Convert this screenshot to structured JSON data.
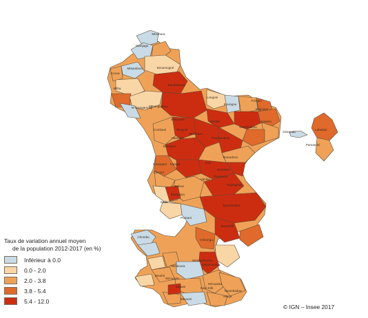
{
  "legend": {
    "title_line1": "Taux de variation annuel moyen",
    "title_line2": "de la population 2012-2017 (en %)",
    "classes": [
      {
        "label": "Inférieur à  0.0",
        "color": "#c8dbe6"
      },
      {
        "label": "0.0 - 2.0",
        "color": "#f9d6a6"
      },
      {
        "label": "2.0 - 3.8",
        "color": "#efa257"
      },
      {
        "label": "3.8 - 5.4",
        "color": "#e06a2b"
      },
      {
        "label": "5.4 - 12.0",
        "color": "#cc2d10"
      }
    ]
  },
  "credit": "© IGN – Insee 2017",
  "villages": [
    {
      "name": "Mtsamboro",
      "cls": 0
    },
    {
      "name": "Hamjago",
      "cls": 0
    },
    {
      "name": "Mtsahara",
      "cls": 1
    },
    {
      "name": "Mliha",
      "cls": 2
    },
    {
      "name": "Mtsangadoua",
      "cls": 1
    },
    {
      "name": "Acoua",
      "cls": 1
    },
    {
      "name": "Dzoumogné",
      "cls": 2
    },
    {
      "name": "Bouyouni",
      "cls": 4
    },
    {
      "name": "Bandraboua",
      "cls": 4
    },
    {
      "name": "Longoni",
      "cls": 1
    },
    {
      "name": "Koungou",
      "cls": 0
    },
    {
      "name": "Trévani",
      "cls": 3
    },
    {
      "name": "Majicavo",
      "cls": 3
    },
    {
      "name": "Kawéni",
      "cls": 4
    },
    {
      "name": "Mamoudzou",
      "cls": 4
    },
    {
      "name": "Mtsahara",
      "cls": 4
    },
    {
      "name": "Tsingoni",
      "cls": 4
    },
    {
      "name": "Combani",
      "cls": 4
    },
    {
      "name": "Mroalé",
      "cls": 4
    },
    {
      "name": "Hamouro",
      "cls": 2
    },
    {
      "name": "Barakani",
      "cls": 4
    },
    {
      "name": "Ouangani",
      "cls": 4
    },
    {
      "name": "Kahani",
      "cls": 4
    },
    {
      "name": "Dembéni",
      "cls": 4
    },
    {
      "name": "Iloni",
      "cls": 3
    },
    {
      "name": "Tsoundzou",
      "cls": 4
    },
    {
      "name": "Passamainty",
      "cls": 4
    },
    {
      "name": "Vahibé",
      "cls": 4
    },
    {
      "name": "Tsararano",
      "cls": 4
    },
    {
      "name": "Hajangoua",
      "cls": 4
    },
    {
      "name": "Nyambadao",
      "cls": 4
    },
    {
      "name": "Bandrélé",
      "cls": 3
    },
    {
      "name": "Mtsamoudou",
      "cls": 3
    },
    {
      "name": "Sada",
      "cls": 1
    },
    {
      "name": "Mangajou",
      "cls": 2
    },
    {
      "name": "Chiconi",
      "cls": 2
    },
    {
      "name": "Sohoa",
      "cls": 4
    },
    {
      "name": "Poroani",
      "cls": 0
    },
    {
      "name": "Chirongui",
      "cls": 3
    },
    {
      "name": "Mramadoudou",
      "cls": 4
    },
    {
      "name": "Tsimkoura",
      "cls": 0
    },
    {
      "name": "Mzouazia",
      "cls": 2
    },
    {
      "name": "Bouéni",
      "cls": 1
    },
    {
      "name": "Kani-Kéli",
      "cls": 2
    },
    {
      "name": "Mbouini",
      "cls": 0
    },
    {
      "name": "Chombo",
      "cls": 0
    },
    {
      "name": "M'Tsangamouji",
      "cls": 0
    },
    {
      "name": "Dzaoudzi",
      "cls": 0
    },
    {
      "name": "Pamandzi",
      "cls": 2
    },
    {
      "name": "Labattoir",
      "cls": 3
    },
    {
      "name": "Vanga",
      "cls": 0
    },
    {
      "name": "Nyambadao",
      "cls": 2
    },
    {
      "name": "Mzouazia",
      "cls": 2
    },
    {
      "name": "Dapani",
      "cls": 1
    }
  ]
}
